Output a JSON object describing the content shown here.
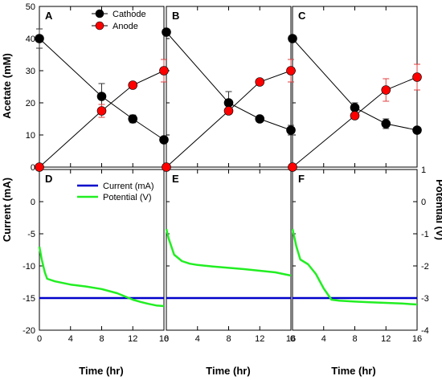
{
  "figure": {
    "ylabel_left_top": "Acetate (mM)",
    "ylabel_left_bottom": "Current (mA)",
    "ylabel_right_bottom": "Potential (V)",
    "xlabel": "Time (hr)",
    "colors": {
      "cathode": "#000000",
      "anode": "#ff0000",
      "current": "#0000cc",
      "potential": "#22ee22"
    }
  },
  "chart_data": [
    {
      "panel": "A",
      "type": "scatter",
      "x": [
        0,
        8,
        12,
        16
      ],
      "xlim": [
        0,
        16
      ],
      "ylim": [
        0,
        50
      ],
      "xticks": [
        0,
        4,
        8,
        12,
        16
      ],
      "yticks": [
        0,
        10,
        20,
        30,
        40,
        50
      ],
      "legend": "top-right",
      "series": [
        {
          "name": "Cathode",
          "values": [
            40,
            22,
            15,
            8.5
          ],
          "err": [
            3,
            4,
            1.2,
            0.5
          ]
        },
        {
          "name": "Anode",
          "values": [
            0,
            17.5,
            25.5,
            30
          ],
          "err": [
            0.5,
            2,
            0.5,
            3.5
          ]
        }
      ]
    },
    {
      "panel": "B",
      "type": "scatter",
      "x": [
        0,
        8,
        12,
        16
      ],
      "xlim": [
        0,
        16
      ],
      "ylim": [
        0,
        50
      ],
      "xticks": [
        0,
        4,
        8,
        12,
        16
      ],
      "series": [
        {
          "name": "Cathode",
          "values": [
            42,
            20,
            15,
            11.5
          ],
          "err": [
            0,
            3.5,
            0.5,
            1.5
          ]
        },
        {
          "name": "Anode",
          "values": [
            0,
            17.5,
            26.5,
            30
          ],
          "err": [
            0.2,
            1,
            0.5,
            3.5
          ]
        }
      ]
    },
    {
      "panel": "C",
      "type": "scatter",
      "x": [
        0,
        8,
        12,
        16
      ],
      "xlim": [
        0,
        16
      ],
      "ylim": [
        0,
        50
      ],
      "xticks": [
        0,
        4,
        8,
        12,
        16
      ],
      "series": [
        {
          "name": "Cathode",
          "values": [
            40,
            18.5,
            13.5,
            11.5
          ],
          "err": [
            0,
            1.5,
            1.5,
            0.5
          ]
        },
        {
          "name": "Anode",
          "values": [
            0,
            16,
            24,
            28
          ],
          "err": [
            0.2,
            0.5,
            3.5,
            4
          ]
        }
      ]
    },
    {
      "panel": "D",
      "type": "line",
      "xlim": [
        0,
        16
      ],
      "ylim": [
        -20,
        5
      ],
      "y2lim": [
        -4,
        1
      ],
      "xticks": [
        0,
        4,
        8,
        12,
        16
      ],
      "yticks": [
        -20,
        -15,
        -10,
        -5,
        0
      ],
      "legend": "top-left",
      "series": [
        {
          "name": "Current (mA)",
          "axis": "left",
          "x": [
            0,
            16
          ],
          "values": [
            -15,
            -15
          ]
        },
        {
          "name": "Potential (V)",
          "axis": "right",
          "x": [
            0,
            0.3,
            0.7,
            1,
            2,
            4,
            6,
            8,
            10,
            11,
            12,
            13,
            14,
            15,
            16
          ],
          "values": [
            -1.4,
            -1.8,
            -2.2,
            -2.4,
            -2.48,
            -2.58,
            -2.64,
            -2.72,
            -2.85,
            -2.95,
            -3.05,
            -3.12,
            -3.18,
            -3.23,
            -3.25
          ]
        }
      ]
    },
    {
      "panel": "E",
      "type": "line",
      "xlim": [
        0,
        16
      ],
      "ylim": [
        -20,
        5
      ],
      "y2lim": [
        -4,
        1
      ],
      "xticks": [
        0,
        4,
        8,
        12,
        16
      ],
      "series": [
        {
          "name": "Current (mA)",
          "axis": "left",
          "x": [
            0,
            16
          ],
          "values": [
            -15,
            -15
          ]
        },
        {
          "name": "Potential (V)",
          "axis": "right",
          "x": [
            0,
            0.3,
            1,
            2,
            3,
            4,
            6,
            8,
            10,
            12,
            14,
            16
          ],
          "values": [
            -0.85,
            -1.15,
            -1.65,
            -1.85,
            -1.93,
            -1.97,
            -2.02,
            -2.06,
            -2.1,
            -2.15,
            -2.2,
            -2.3
          ]
        }
      ]
    },
    {
      "panel": "F",
      "type": "line",
      "xlim": [
        0,
        16
      ],
      "ylim": [
        -20,
        5
      ],
      "y2lim": [
        -4,
        1
      ],
      "xticks": [
        0,
        4,
        8,
        12,
        16
      ],
      "y2ticks": [
        -4,
        -3,
        -2,
        -1,
        0,
        1
      ],
      "series": [
        {
          "name": "Current (mA)",
          "axis": "left",
          "x": [
            0,
            16
          ],
          "values": [
            -15,
            -15
          ]
        },
        {
          "name": "Potential (V)",
          "axis": "right",
          "x": [
            0,
            0.5,
            1,
            2,
            3,
            4,
            5,
            6,
            8,
            10,
            12,
            14,
            16
          ],
          "values": [
            -0.85,
            -1.4,
            -1.8,
            -1.95,
            -2.25,
            -2.7,
            -3.05,
            -3.08,
            -3.11,
            -3.13,
            -3.15,
            -3.17,
            -3.2
          ]
        }
      ]
    }
  ],
  "panels_text": {
    "A": {
      "letter": "A",
      "legend": [
        "Cathode",
        "Anode"
      ]
    },
    "B": {
      "letter": "B"
    },
    "C": {
      "letter": "C"
    },
    "D": {
      "letter": "D",
      "legend": [
        "Current (mA)",
        "Potential (V)"
      ]
    },
    "E": {
      "letter": "E"
    },
    "F": {
      "letter": "F"
    }
  }
}
